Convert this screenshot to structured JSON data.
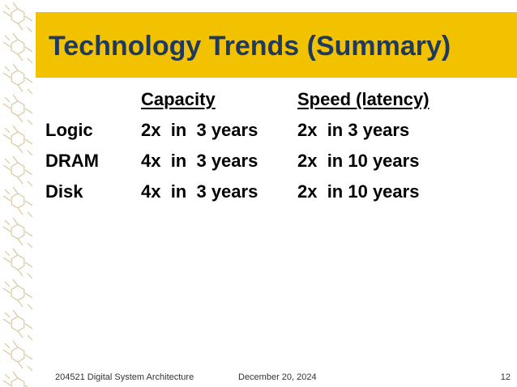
{
  "slide": {
    "title": "Technology Trends (Summary)",
    "table": {
      "headers": [
        "",
        "Capacity",
        "Speed (latency)"
      ],
      "rows": [
        [
          "Logic",
          "2x  in  3 years",
          "2x  in 3 years"
        ],
        [
          "DRAM",
          "4x  in  3 years",
          "2x  in 10 years"
        ],
        [
          "Disk",
          "4x  in  3 years",
          "2x  in 10 years"
        ]
      ]
    },
    "footer": {
      "course": "204521 Digital System Architecture",
      "date": "December 20, 2024",
      "page_number": "12"
    }
  },
  "colors": {
    "title_bar": "#F2C200",
    "title_text": "#1F3A5C",
    "pattern_stroke": "#D8C8A0"
  },
  "icons": {
    "left_pattern": "decorative-molecule-pattern"
  }
}
